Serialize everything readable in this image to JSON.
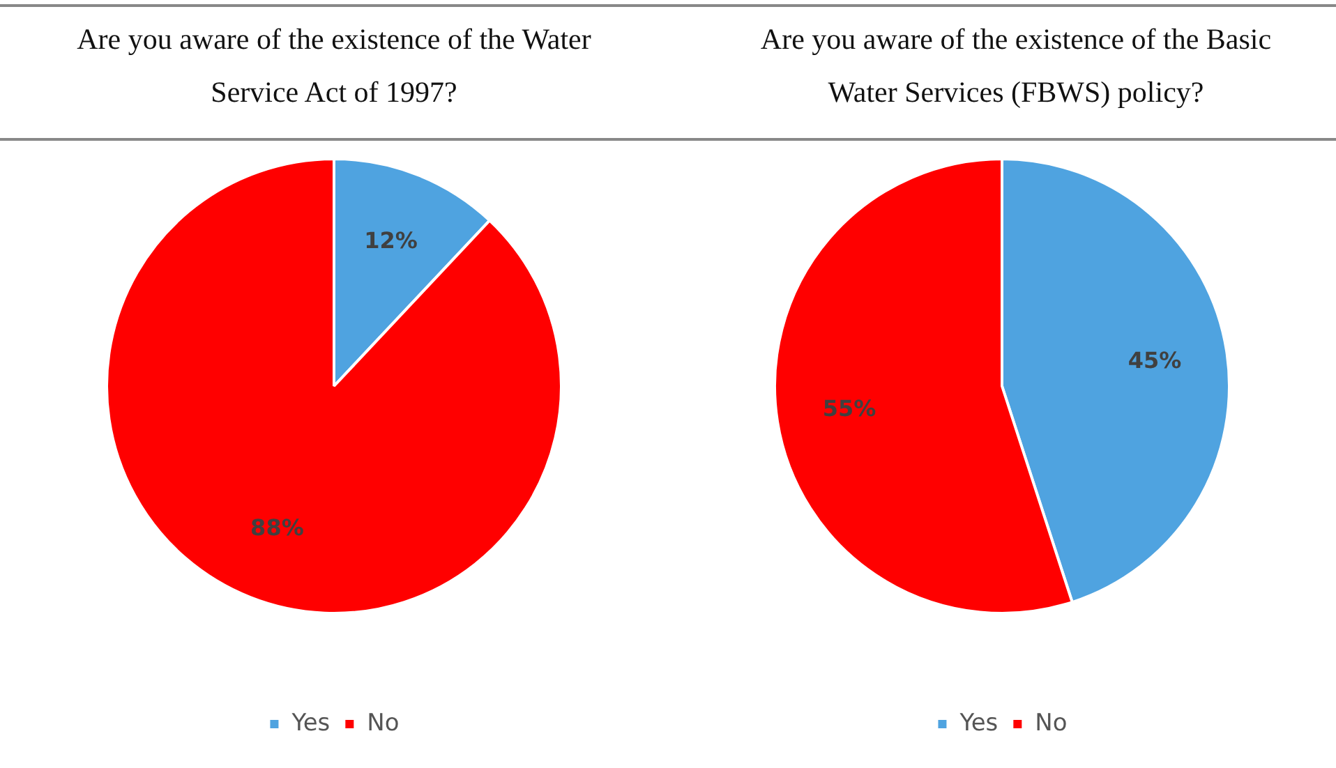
{
  "chart_data": [
    {
      "type": "pie",
      "title": "Are you aware of the existence of the Water Service Act of 1997?",
      "categories": [
        "Yes",
        "No"
      ],
      "values": [
        12,
        88
      ],
      "colors": [
        "#4fa3e0",
        "#ff0000"
      ],
      "value_labels": [
        "12%",
        "88%"
      ],
      "legend": "bottom"
    },
    {
      "type": "pie",
      "title": "Are you aware of the existence of the Basic Water Services (FBWS) policy?",
      "categories": [
        "Yes",
        "No"
      ],
      "values": [
        45,
        55
      ],
      "colors": [
        "#4fa3e0",
        "#ff0000"
      ],
      "value_labels": [
        "45%",
        "55%"
      ],
      "legend": "bottom"
    }
  ]
}
